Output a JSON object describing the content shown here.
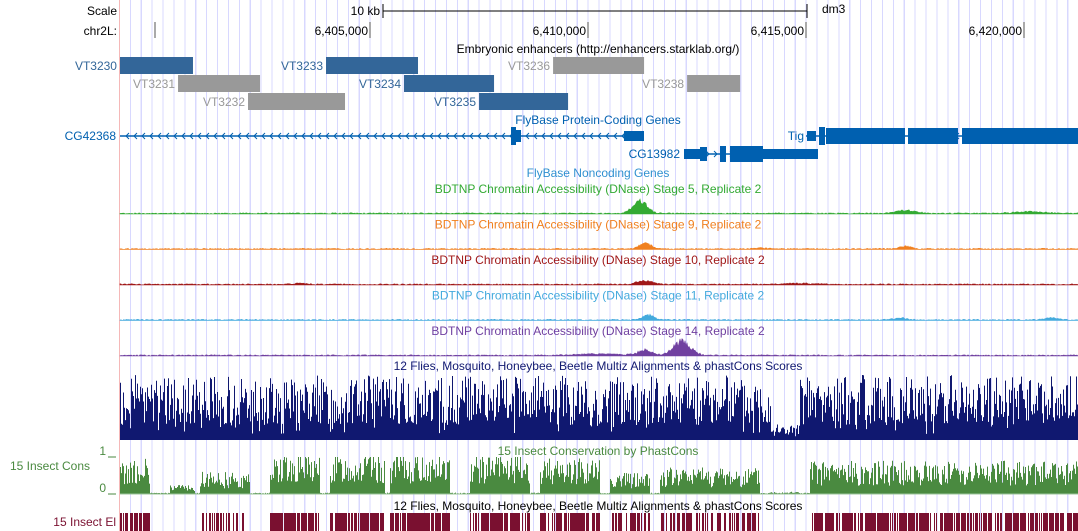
{
  "ruler": {
    "scale_label": "Scale",
    "scale_bar": "10 kb",
    "assembly": "dm3",
    "chrom_label": "chr2L:",
    "ticks": [
      {
        "pos": 6405000,
        "label": "6,405,000"
      },
      {
        "pos": 6410000,
        "label": "6,410,000"
      },
      {
        "pos": 6415000,
        "label": "6,415,000"
      },
      {
        "pos": 6420000,
        "label": "6,420,000"
      }
    ]
  },
  "enhancers": {
    "title": "Embryonic enhancers (http://enhancers.starklab.org/)",
    "items": [
      {
        "name": "VT3230",
        "start": 6399266,
        "end": 6400940,
        "row": 0,
        "color": "#336699"
      },
      {
        "name": "VT3231",
        "start": 6400597,
        "end": 6402478,
        "row": 1,
        "color": "#999999"
      },
      {
        "name": "VT3232",
        "start": 6402202,
        "end": 6404427,
        "row": 2,
        "color": "#999999"
      },
      {
        "name": "VT3233",
        "start": 6403991,
        "end": 6406101,
        "row": 0,
        "color": "#336699"
      },
      {
        "name": "VT3234",
        "start": 6405780,
        "end": 6407845,
        "row": 1,
        "color": "#336699"
      },
      {
        "name": "VT3235",
        "start": 6407501,
        "end": 6409543,
        "row": 2,
        "color": "#336699"
      },
      {
        "name": "VT3236",
        "start": 6409199,
        "end": 6411286,
        "row": 0,
        "color": "#999999"
      },
      {
        "name": "VT3238",
        "start": 6412273,
        "end": 6413489,
        "row": 1,
        "color": "#999999"
      }
    ]
  },
  "genes": {
    "title": "FlyBase Protein-Coding Genes",
    "color": "#0060b0",
    "items": [
      {
        "name": "CG42368",
        "strand": "-"
      },
      {
        "name": "CG13982",
        "strand": "+"
      },
      {
        "name": "Tig",
        "strand": "-"
      }
    ]
  },
  "noncoding": {
    "title": "FlyBase Noncoding Genes"
  },
  "dnase": [
    {
      "title": "BDTNP Chromatin Accessibility (DNase) Stage 5, Replicate 2",
      "color": "#33aa33"
    },
    {
      "title": "BDTNP Chromatin Accessibility (DNase) Stage 9, Replicate 2",
      "color": "#f08020"
    },
    {
      "title": "BDTNP Chromatin Accessibility (DNase) Stage 10, Replicate 2",
      "color": "#a01818"
    },
    {
      "title": "BDTNP Chromatin Accessibility (DNase) Stage 11, Replicate 2",
      "color": "#44aadd"
    },
    {
      "title": "BDTNP Chromatin Accessibility (DNase) Stage 14, Replicate 2",
      "color": "#7040a0"
    }
  ],
  "multiz": {
    "title": "12 Flies, Mosquito, Honeybee, Beetle Multiz Alignments & phastCons Scores",
    "color": "#101870"
  },
  "phastcons": {
    "title": "15 Insect Conservation by PhastCons",
    "label": "15 Insect Cons",
    "ymax": "1",
    "ymin": "0",
    "color": "#4a8a40"
  },
  "multiz2": {
    "title": "12 Flies, Mosquito, Honeybee, Beetle Multiz Alignments & phastCons Scores"
  },
  "elements": {
    "label": "15 Insect El",
    "color": "#7a1030"
  }
}
